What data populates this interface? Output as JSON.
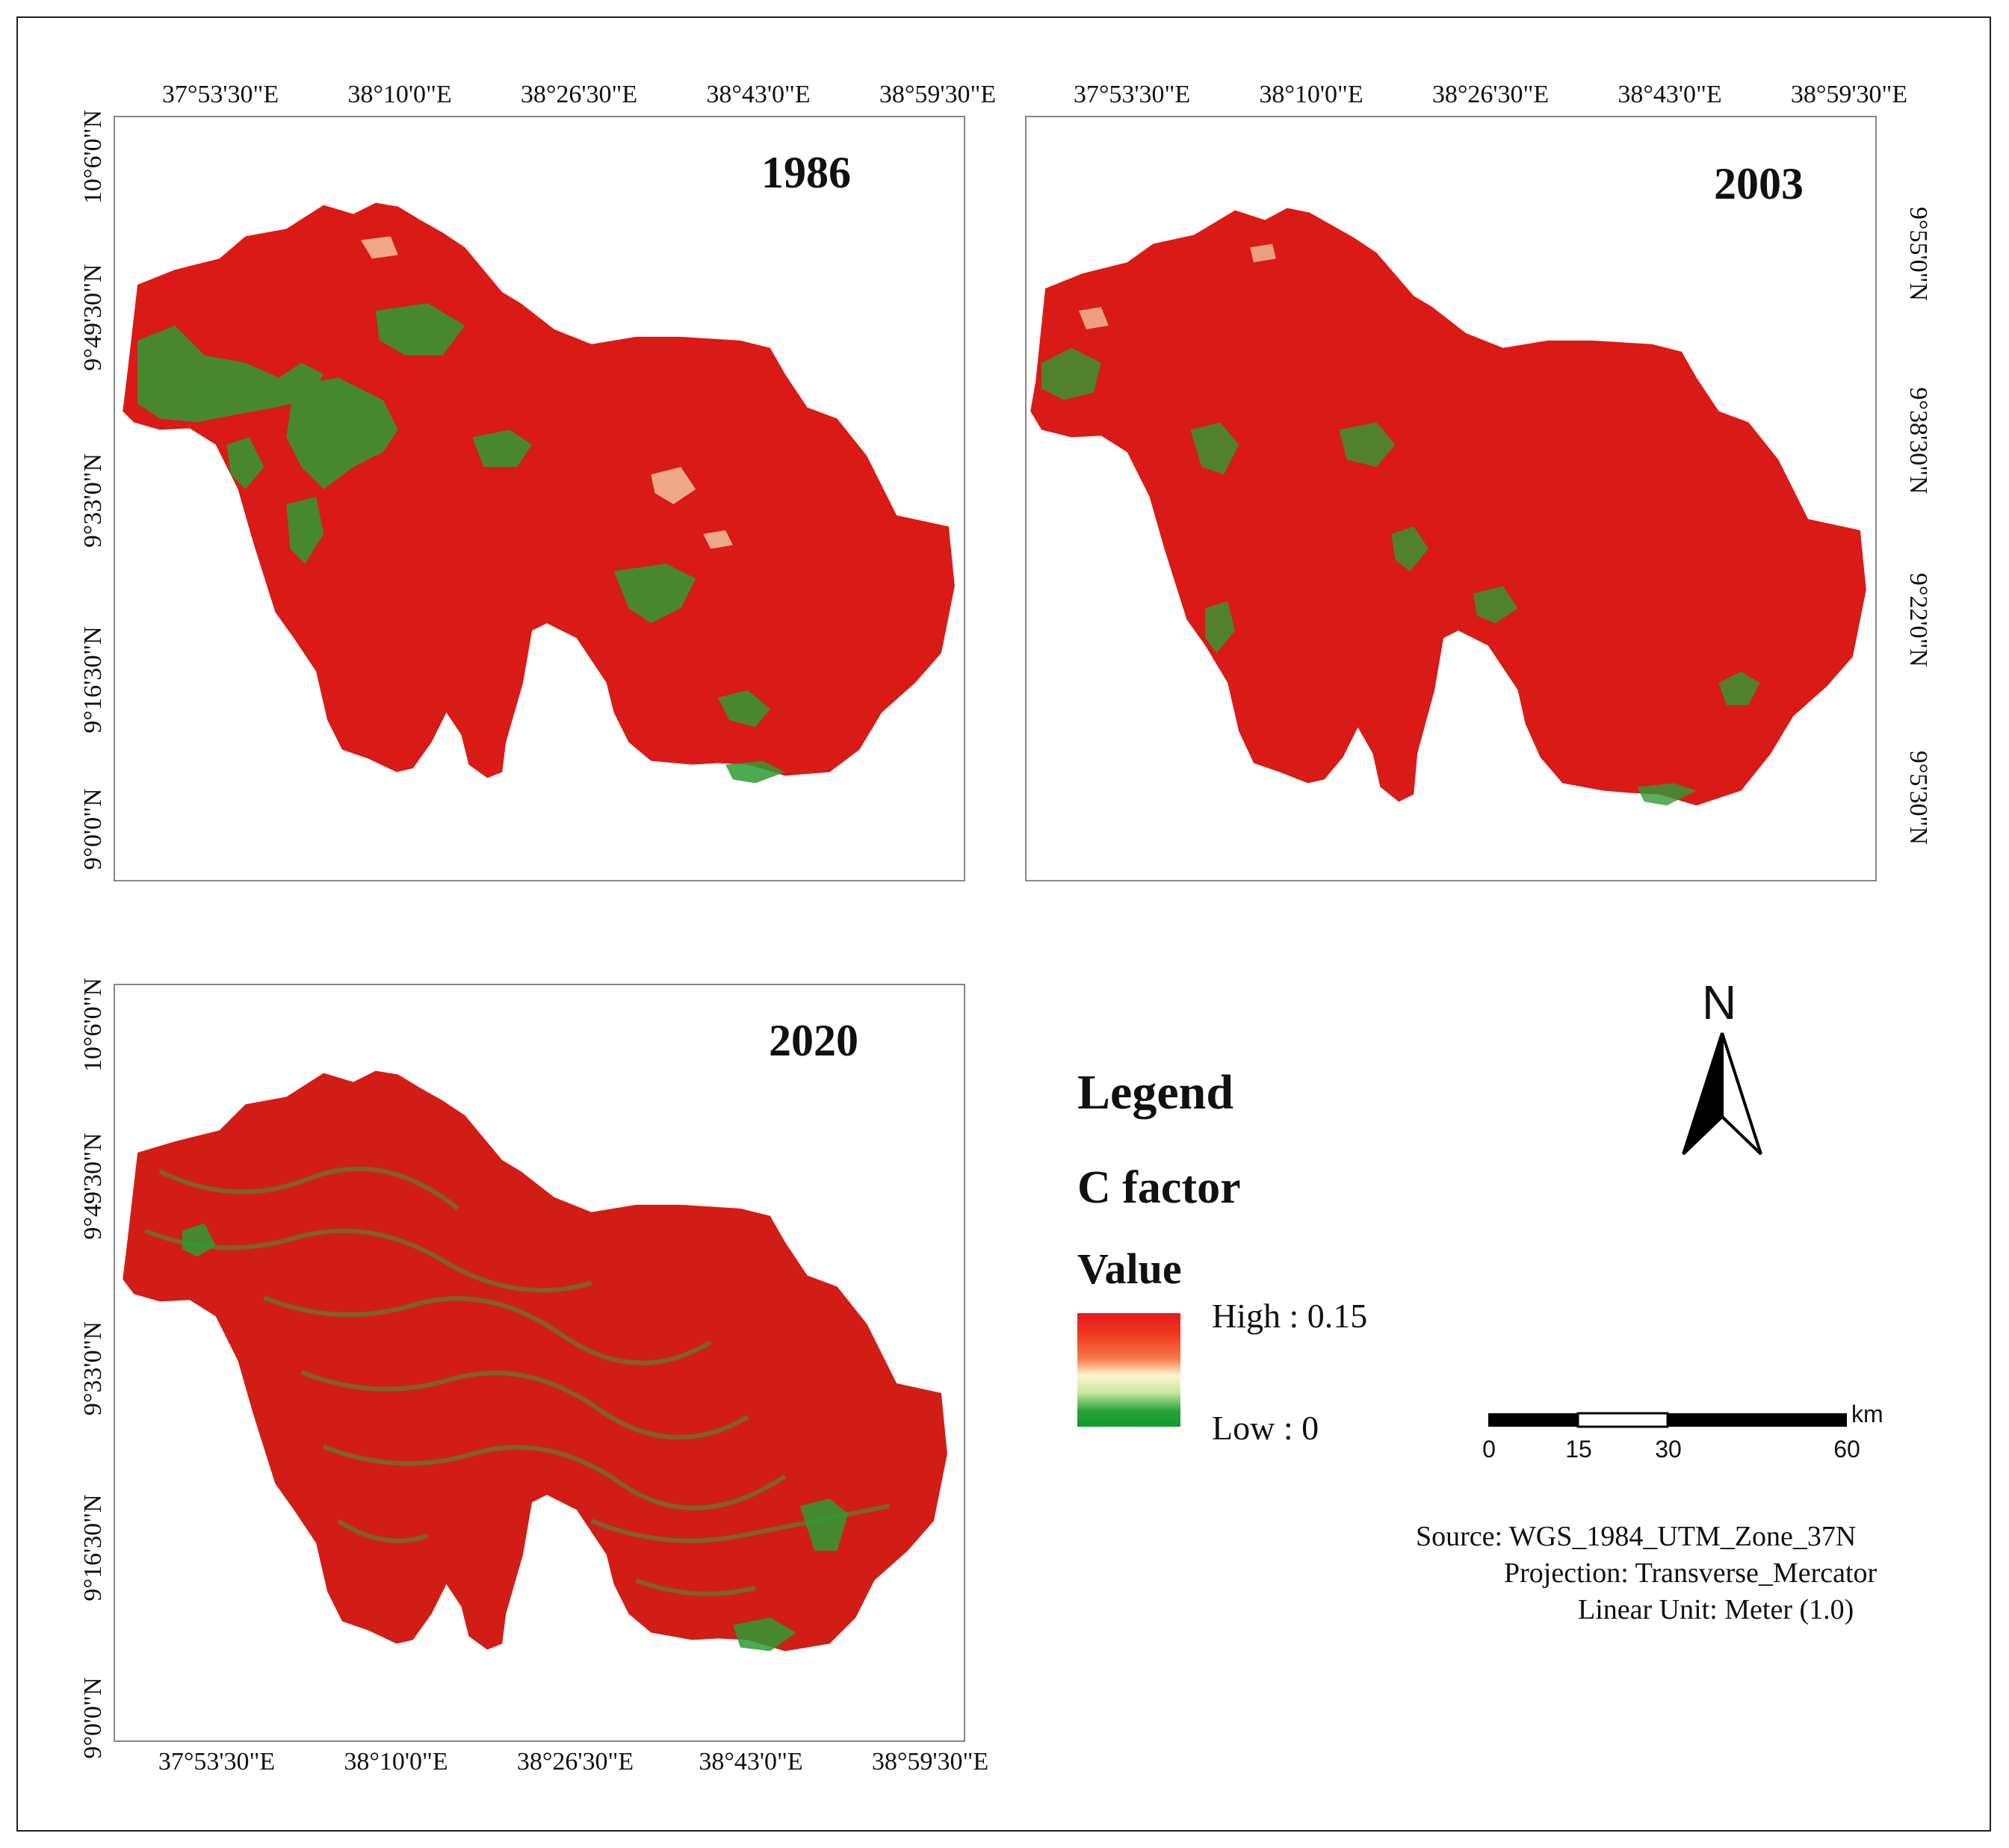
{
  "maps": [
    {
      "year": "1986",
      "lon_ticks": [
        "37°53'30\"E",
        "38°10'0\"E",
        "38°26'30\"E",
        "38°43'0\"E",
        "38°59'30\"E"
      ],
      "lat_ticks": [
        "10°6'0\"N",
        "9°49'30\"N",
        "9°33'0\"N",
        "9°16'30\"N",
        "9°0'0\"N"
      ]
    },
    {
      "year": "2003",
      "lon_ticks": [
        "37°53'30\"E",
        "38°10'0\"E",
        "38°26'30\"E",
        "38°43'0\"E",
        "38°59'30\"E"
      ],
      "lat_ticks": [
        "9°55'0\"N",
        "9°38'30\"N",
        "9°22'0\"N",
        "9°5'30\"N"
      ]
    },
    {
      "year": "2020",
      "lon_ticks": [
        "37°53'30\"E",
        "38°10'0\"E",
        "38°26'30\"E",
        "38°43'0\"E",
        "38°59'30\"E"
      ],
      "lat_ticks": [
        "10°6'0\"N",
        "9°49'30\"N",
        "9°33'0\"N",
        "9°16'30\"N",
        "9°0'0\"N"
      ]
    }
  ],
  "legend": {
    "title": "Legend",
    "layer": "C factor",
    "field": "Value",
    "high_label": "High : 0.15",
    "low_label": "Low : 0",
    "high_color": "#e31a1c",
    "mid_color": "#fff6d0",
    "low_color": "#0f9b2a"
  },
  "north_arrow": {
    "label": "N"
  },
  "scale_bar": {
    "unit": "km",
    "ticks": [
      "0",
      "15",
      "30",
      "60"
    ]
  },
  "metadata": {
    "source": "Source: WGS_1984_UTM_Zone_37N",
    "projection": "Projection: Transverse_Mercator",
    "linear_unit": "Linear Unit: Meter (1.0)"
  }
}
